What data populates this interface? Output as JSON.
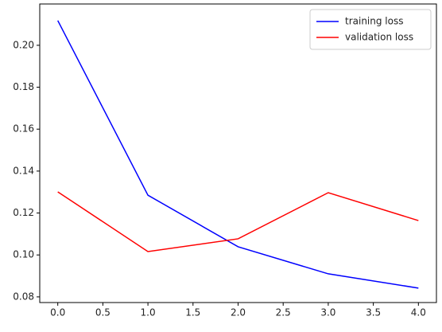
{
  "chart_data": {
    "type": "line",
    "x": [
      0,
      1,
      2,
      3,
      4
    ],
    "series": [
      {
        "name": "training loss",
        "color": "#0000ff",
        "values": [
          0.2118,
          0.1285,
          0.1039,
          0.091,
          0.0842
        ]
      },
      {
        "name": "validation loss",
        "color": "#ff0000",
        "values": [
          0.1301,
          0.1016,
          0.1077,
          0.1297,
          0.1164
        ]
      }
    ],
    "xlim": [
      -0.2,
      4.2
    ],
    "xticks": [
      {
        "value": 0,
        "label": "0.0"
      },
      0.5,
      {
        "value": 1,
        "label": "1.0"
      },
      1.5,
      {
        "value": 2,
        "label": "2.0"
      },
      2.5,
      {
        "value": 3,
        "label": "3.0"
      },
      3.5,
      {
        "value": 4,
        "label": "4.0"
      }
    ],
    "ylim": [
      0.0773,
      0.2197
    ],
    "yticks": [
      0.08,
      {
        "value": 0.1,
        "label": "0.10"
      },
      0.12,
      0.14,
      0.16,
      0.18,
      {
        "value": 0.2,
        "label": "0.20"
      }
    ],
    "grid": false,
    "legend": "upper right"
  }
}
